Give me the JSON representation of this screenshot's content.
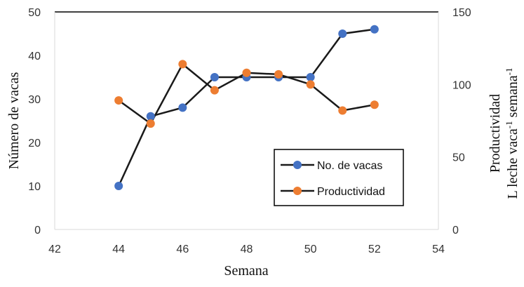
{
  "chart_data": {
    "type": "line",
    "xlabel": "Semana",
    "ylabel_left": "Número de vacas",
    "ylabel_right_line1": "Productividad",
    "ylabel_right_line2_prefix": "L leche  vaca",
    "ylabel_right_line2_sup1": "-1",
    "ylabel_right_line2_mid": " semana",
    "ylabel_right_line2_sup2": "-1",
    "xlim": [
      42,
      54
    ],
    "xticks": [
      42,
      44,
      46,
      48,
      50,
      52,
      54
    ],
    "ylim_left": [
      0,
      50
    ],
    "yticks_left": [
      0,
      10,
      20,
      30,
      40,
      50
    ],
    "ylim_right": [
      0,
      150
    ],
    "yticks_right": [
      0,
      50,
      100,
      150
    ],
    "grid": false,
    "legend_position": "lower-right",
    "series": [
      {
        "name": "No. de vacas",
        "axis": "left",
        "color": "#4472C4",
        "line_color": "#1a1a1a",
        "x": [
          44,
          45,
          46,
          47,
          48,
          49,
          50,
          51,
          52
        ],
        "y": [
          10,
          26,
          28,
          35,
          35,
          35,
          35,
          45,
          46
        ]
      },
      {
        "name": "Productividad",
        "axis": "right",
        "color": "#ED7D31",
        "line_color": "#1a1a1a",
        "x": [
          44,
          45,
          46,
          47,
          48,
          49,
          50,
          51,
          52
        ],
        "y": [
          89,
          73,
          114,
          96,
          108,
          107,
          100,
          82,
          86
        ]
      }
    ]
  }
}
